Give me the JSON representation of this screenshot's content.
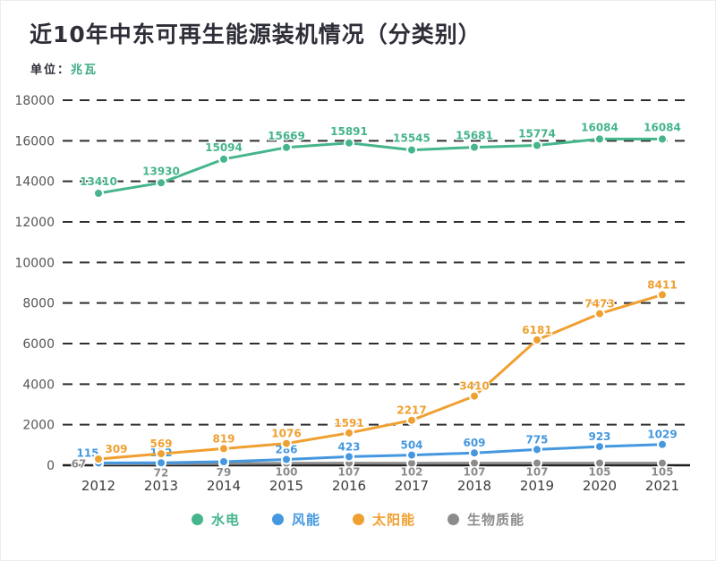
{
  "header": {
    "title": "近10年中东可再生能源装机情况（分类别）",
    "unit_prefix": "单位：",
    "unit_value": "兆瓦"
  },
  "chart_data": {
    "type": "line",
    "title": "近10年中东可再生能源装机情况（分类别）",
    "unit": "兆瓦",
    "categories": [
      "2012",
      "2013",
      "2014",
      "2015",
      "2016",
      "2017",
      "2018",
      "2019",
      "2020",
      "2021"
    ],
    "series": [
      {
        "id": "hydro",
        "name": "水电",
        "color": "#45b58b",
        "values": [
          13410,
          13930,
          15094,
          15669,
          15891,
          15545,
          15681,
          15774,
          16084,
          16084
        ]
      },
      {
        "id": "wind",
        "name": "风能",
        "color": "#4598e0",
        "values": [
          115,
          122,
          175,
          286,
          423,
          504,
          609,
          775,
          923,
          1029
        ],
        "label_hidden_indices": [
          2
        ]
      },
      {
        "id": "solar",
        "name": "太阳能",
        "color": "#f0a030",
        "values": [
          309,
          569,
          819,
          1076,
          1591,
          2217,
          3410,
          6181,
          7473,
          8411
        ]
      },
      {
        "id": "biomass",
        "name": "生物质能",
        "color": "#8c8c8c",
        "values": [
          67,
          72,
          79,
          100,
          107,
          102,
          107,
          107,
          105,
          105
        ]
      }
    ],
    "ylim": [
      0,
      18000
    ],
    "y_ticks": [
      0,
      2000,
      4000,
      6000,
      8000,
      10000,
      12000,
      14000,
      16000,
      18000
    ],
    "grid": "dashed horizontal",
    "legend_position": "bottom",
    "x_axis_line": "solid"
  }
}
